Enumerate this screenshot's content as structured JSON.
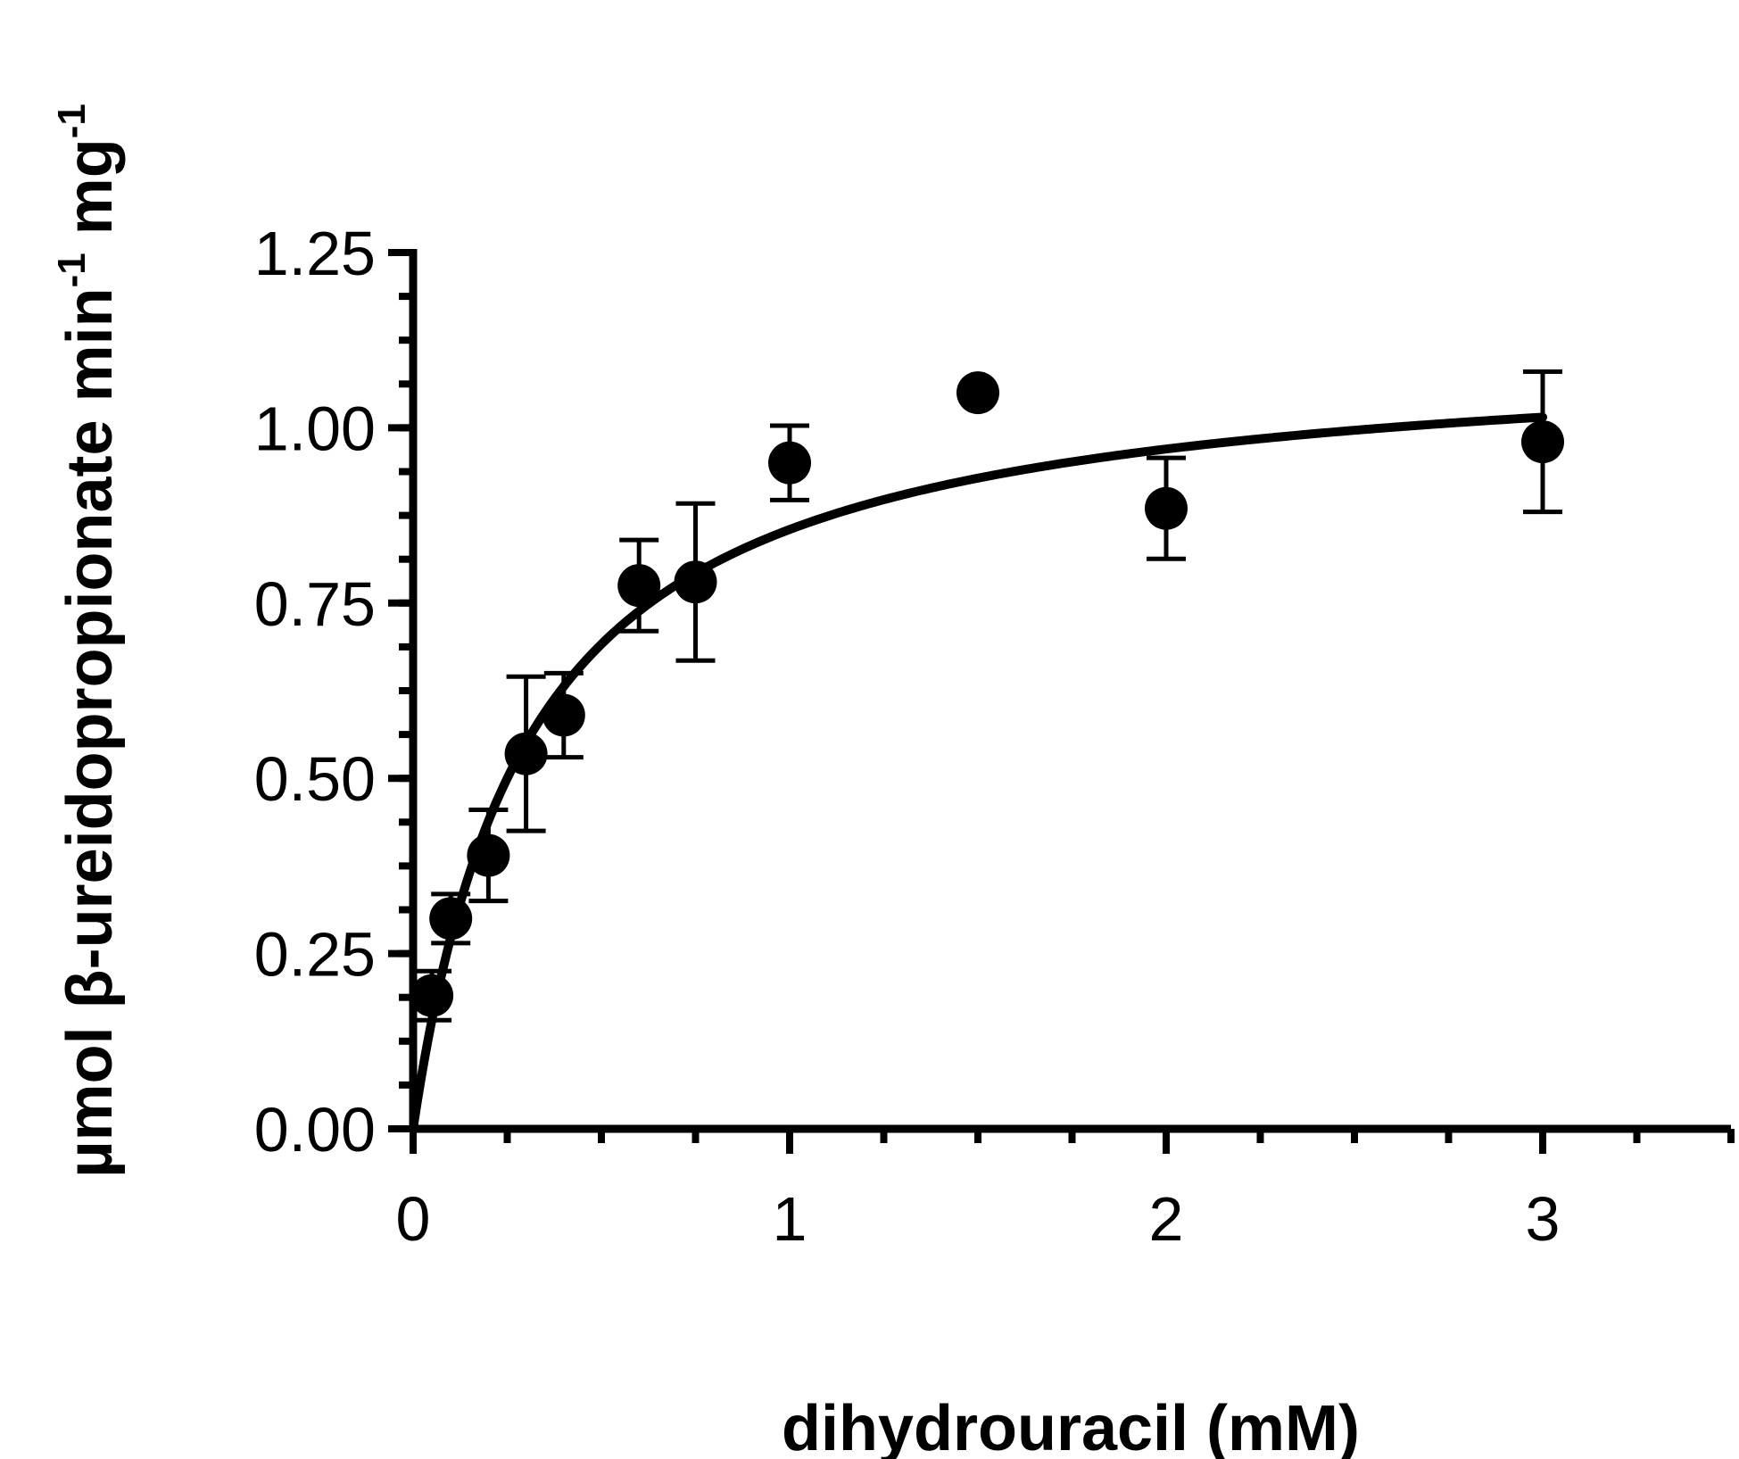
{
  "chart_data": {
    "type": "scatter",
    "title": "",
    "xlabel": "dihydrouracil (mM)",
    "ylabel": {
      "main": "µmol β-ureidopropionate min",
      "exp1": "-1",
      "unit2": " mg",
      "exp2": "-1"
    },
    "xlim": [
      0,
      3.5
    ],
    "ylim": [
      0,
      1.25
    ],
    "x_ticks": [
      {
        "value": 0,
        "label": "0"
      },
      {
        "value": 1,
        "label": "1"
      },
      {
        "value": 2,
        "label": "2"
      },
      {
        "value": 3,
        "label": "3"
      }
    ],
    "x_minor_step": 0.25,
    "y_ticks": [
      {
        "value": 0,
        "label": "0.00"
      },
      {
        "value": 0.25,
        "label": "0.25"
      },
      {
        "value": 0.5,
        "label": "0.50"
      },
      {
        "value": 0.75,
        "label": "0.75"
      },
      {
        "value": 1.0,
        "label": "1.00"
      },
      {
        "value": 1.25,
        "label": "1.25"
      }
    ],
    "y_minor_step": 0.0625,
    "grid": false,
    "legend": "none",
    "series": [
      {
        "points": [
          {
            "x": 0.05,
            "y": 0.19,
            "err": 0.035
          },
          {
            "x": 0.1,
            "y": 0.3,
            "err": 0.035
          },
          {
            "x": 0.2,
            "y": 0.39,
            "err": 0.065
          },
          {
            "x": 0.3,
            "y": 0.535,
            "err": 0.11
          },
          {
            "x": 0.4,
            "y": 0.59,
            "err": 0.06
          },
          {
            "x": 0.6,
            "y": 0.775,
            "err": 0.065
          },
          {
            "x": 0.75,
            "y": 0.78,
            "err": 0.112
          },
          {
            "x": 1.0,
            "y": 0.95,
            "err": 0.053
          },
          {
            "x": 1.5,
            "y": 1.05,
            "err": 0
          },
          {
            "x": 2.0,
            "y": 0.885,
            "err": 0.072
          },
          {
            "x": 3.0,
            "y": 0.98,
            "err": 0.1
          }
        ]
      }
    ],
    "fit": {
      "model": "michaelis-menten",
      "vmax": 1.12,
      "km": 0.31,
      "x_range": [
        0,
        3.0
      ]
    },
    "colors": {
      "ink": "#000000",
      "background": "#ffffff"
    }
  }
}
